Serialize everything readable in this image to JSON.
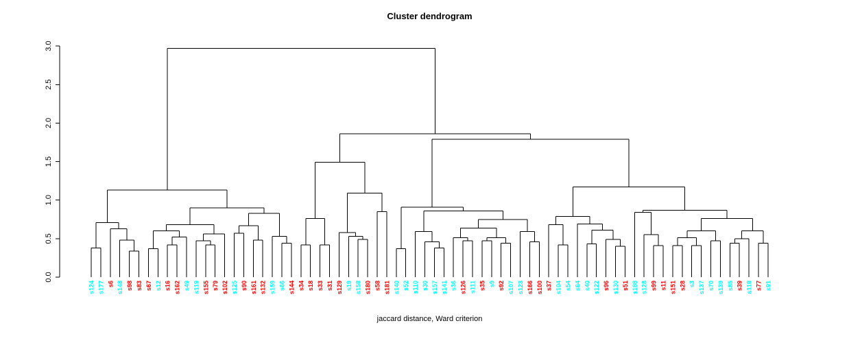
{
  "header": {
    "title": "Cluster dendrogram"
  },
  "footer": {
    "xlabel": "jaccard distance, Ward criterion"
  },
  "chart_data": {
    "type": "dendrogram",
    "title": "Cluster dendrogram",
    "xlabel": "jaccard distance, Ward criterion",
    "ylabel": "",
    "ylim": [
      0,
      3
    ],
    "yticks": [
      "0.0",
      "0.5",
      "1.0",
      "1.5",
      "2.0",
      "2.5",
      "3.0"
    ],
    "grid": false,
    "colors": {
      "red": "#ff0000",
      "cyan": "#00ffff",
      "line": "#000000"
    },
    "leaves": [
      {
        "label": "s124",
        "color": "cyan"
      },
      {
        "label": "s177",
        "color": "cyan"
      },
      {
        "label": "s6",
        "color": "red"
      },
      {
        "label": "s148",
        "color": "cyan"
      },
      {
        "label": "s98",
        "color": "red"
      },
      {
        "label": "s83",
        "color": "red"
      },
      {
        "label": "s67",
        "color": "red"
      },
      {
        "label": "s12",
        "color": "cyan"
      },
      {
        "label": "s16",
        "color": "red"
      },
      {
        "label": "s162",
        "color": "red"
      },
      {
        "label": "s49",
        "color": "cyan"
      },
      {
        "label": "s119",
        "color": "cyan"
      },
      {
        "label": "s155",
        "color": "red"
      },
      {
        "label": "s79",
        "color": "red"
      },
      {
        "label": "s102",
        "color": "red"
      },
      {
        "label": "s125",
        "color": "cyan"
      },
      {
        "label": "s90",
        "color": "red"
      },
      {
        "label": "s161",
        "color": "red"
      },
      {
        "label": "s132",
        "color": "red"
      },
      {
        "label": "s159",
        "color": "cyan"
      },
      {
        "label": "s66",
        "color": "cyan"
      },
      {
        "label": "s144",
        "color": "red"
      },
      {
        "label": "s34",
        "color": "red"
      },
      {
        "label": "s18",
        "color": "red"
      },
      {
        "label": "s33",
        "color": "red"
      },
      {
        "label": "s31",
        "color": "red"
      },
      {
        "label": "s129",
        "color": "red"
      },
      {
        "label": "s19",
        "color": "cyan"
      },
      {
        "label": "s158",
        "color": "cyan"
      },
      {
        "label": "s180",
        "color": "red"
      },
      {
        "label": "s58",
        "color": "red"
      },
      {
        "label": "s181",
        "color": "red"
      },
      {
        "label": "s140",
        "color": "cyan"
      },
      {
        "label": "s52",
        "color": "cyan"
      },
      {
        "label": "s110",
        "color": "cyan"
      },
      {
        "label": "s30",
        "color": "cyan"
      },
      {
        "label": "s157",
        "color": "cyan"
      },
      {
        "label": "s141",
        "color": "cyan"
      },
      {
        "label": "s36",
        "color": "cyan"
      },
      {
        "label": "s126",
        "color": "red"
      },
      {
        "label": "s111",
        "color": "cyan"
      },
      {
        "label": "s35",
        "color": "red"
      },
      {
        "label": "s9",
        "color": "cyan"
      },
      {
        "label": "s92",
        "color": "red"
      },
      {
        "label": "s107",
        "color": "cyan"
      },
      {
        "label": "s123",
        "color": "cyan"
      },
      {
        "label": "s166",
        "color": "red"
      },
      {
        "label": "s100",
        "color": "red"
      },
      {
        "label": "s37",
        "color": "red"
      },
      {
        "label": "s104",
        "color": "cyan"
      },
      {
        "label": "s54",
        "color": "cyan"
      },
      {
        "label": "s64",
        "color": "cyan"
      },
      {
        "label": "s40",
        "color": "cyan"
      },
      {
        "label": "s122",
        "color": "cyan"
      },
      {
        "label": "s96",
        "color": "red"
      },
      {
        "label": "s130",
        "color": "cyan"
      },
      {
        "label": "s51",
        "color": "red"
      },
      {
        "label": "s188",
        "color": "cyan"
      },
      {
        "label": "s128",
        "color": "cyan"
      },
      {
        "label": "s99",
        "color": "red"
      },
      {
        "label": "s11",
        "color": "red"
      },
      {
        "label": "s151",
        "color": "red"
      },
      {
        "label": "s28",
        "color": "red"
      },
      {
        "label": "s3",
        "color": "cyan"
      },
      {
        "label": "s137",
        "color": "cyan"
      },
      {
        "label": "s70",
        "color": "cyan"
      },
      {
        "label": "s139",
        "color": "cyan"
      },
      {
        "label": "s85",
        "color": "cyan"
      },
      {
        "label": "s39",
        "color": "red"
      },
      {
        "label": "s118",
        "color": "cyan"
      },
      {
        "label": "s77",
        "color": "red"
      },
      {
        "label": "s91",
        "color": "cyan"
      }
    ],
    "tree": {
      "h": 2.97,
      "c": [
        {
          "h": 1.13,
          "c": [
            {
              "h": 0.71,
              "c": [
                {
                  "h": 0.38,
                  "c": [
                    "s124",
                    "s177"
                  ]
                },
                {
                  "h": 0.63,
                  "c": [
                    "s6",
                    {
                      "h": 0.48,
                      "c": [
                        "s148",
                        {
                          "h": 0.34,
                          "c": [
                            "s98",
                            "s83"
                          ]
                        }
                      ]
                    }
                  ]
                }
              ]
            },
            {
              "h": 0.9,
              "c": [
                {
                  "h": 0.68,
                  "c": [
                    {
                      "h": 0.6,
                      "c": [
                        {
                          "h": 0.37,
                          "c": [
                            "s67",
                            "s12"
                          ]
                        },
                        {
                          "h": 0.52,
                          "c": [
                            {
                              "h": 0.42,
                              "c": [
                                "s16",
                                "s162"
                              ]
                            },
                            "s49"
                          ]
                        }
                      ]
                    },
                    {
                      "h": 0.56,
                      "c": [
                        {
                          "h": 0.47,
                          "c": [
                            "s119",
                            {
                              "h": 0.42,
                              "c": [
                                "s155",
                                "s79"
                              ]
                            }
                          ]
                        },
                        "s102"
                      ]
                    }
                  ]
                },
                {
                  "h": 0.83,
                  "c": [
                    {
                      "h": 0.67,
                      "c": [
                        {
                          "h": 0.57,
                          "c": [
                            "s125",
                            "s90"
                          ]
                        },
                        {
                          "h": 0.48,
                          "c": [
                            "s161",
                            "s132"
                          ]
                        }
                      ]
                    },
                    {
                      "h": 0.53,
                      "c": [
                        "s159",
                        {
                          "h": 0.44,
                          "c": [
                            "s66",
                            "s144"
                          ]
                        }
                      ]
                    }
                  ]
                }
              ]
            }
          ]
        },
        {
          "h": 1.86,
          "c": [
            {
              "h": 1.49,
              "c": [
                {
                  "h": 0.76,
                  "c": [
                    {
                      "h": 0.42,
                      "c": [
                        "s34",
                        "s18"
                      ]
                    },
                    {
                      "h": 0.42,
                      "c": [
                        "s33",
                        "s31"
                      ]
                    }
                  ]
                },
                {
                  "h": 1.09,
                  "c": [
                    {
                      "h": 0.58,
                      "c": [
                        "s129",
                        {
                          "h": 0.53,
                          "c": [
                            "s19",
                            {
                              "h": 0.49,
                              "c": [
                                "s158",
                                "s180"
                              ]
                            }
                          ]
                        }
                      ]
                    },
                    {
                      "h": 0.85,
                      "c": [
                        "s58",
                        "s181"
                      ]
                    }
                  ]
                }
              ]
            },
            {
              "h": 1.79,
              "c": [
                {
                  "h": 0.91,
                  "c": [
                    {
                      "h": 0.37,
                      "c": [
                        "s140",
                        "s52"
                      ]
                    },
                    {
                      "h": 0.86,
                      "c": [
                        {
                          "h": 0.59,
                          "c": [
                            "s110",
                            {
                              "h": 0.46,
                              "c": [
                                "s30",
                                {
                                  "h": 0.38,
                                  "c": [
                                    "s157",
                                    "s141"
                                  ]
                                }
                              ]
                            }
                          ]
                        },
                        {
                          "h": 0.75,
                          "c": [
                            {
                              "h": 0.635,
                              "c": [
                                {
                                  "h": 0.51,
                                  "c": [
                                    "s36",
                                    {
                                      "h": 0.47,
                                      "c": [
                                        "s126",
                                        "s111"
                                      ]
                                    }
                                  ]
                                },
                                {
                                  "h": 0.51,
                                  "c": [
                                    {
                                      "h": 0.47,
                                      "c": [
                                        "s35",
                                        "s9"
                                      ]
                                    },
                                    {
                                      "h": 0.44,
                                      "c": [
                                        "s92",
                                        "s107"
                                      ]
                                    }
                                  ]
                                }
                              ]
                            },
                            {
                              "h": 0.59,
                              "c": [
                                "s123",
                                {
                                  "h": 0.46,
                                  "c": [
                                    "s166",
                                    "s100"
                                  ]
                                }
                              ]
                            }
                          ]
                        }
                      ]
                    }
                  ]
                },
                {
                  "h": 1.17,
                  "c": [
                    {
                      "h": 0.79,
                      "c": [
                        {
                          "h": 0.68,
                          "c": [
                            "s37",
                            {
                              "h": 0.42,
                              "c": [
                                "s104",
                                "s54"
                              ]
                            }
                          ]
                        },
                        {
                          "h": 0.69,
                          "c": [
                            "s64",
                            {
                              "h": 0.61,
                              "c": [
                                {
                                  "h": 0.43,
                                  "c": [
                                    "s40",
                                    "s122"
                                  ]
                                },
                                {
                                  "h": 0.49,
                                  "c": [
                                    "s96",
                                    {
                                      "h": 0.4,
                                      "c": [
                                        "s130",
                                        "s51"
                                      ]
                                    }
                                  ]
                                }
                              ]
                            }
                          ]
                        }
                      ]
                    },
                    {
                      "h": 0.87,
                      "c": [
                        {
                          "h": 0.84,
                          "c": [
                            "s188",
                            {
                              "h": 0.55,
                              "c": [
                                "s128",
                                {
                                  "h": 0.41,
                                  "c": [
                                    "s99",
                                    "s11"
                                  ]
                                }
                              ]
                            }
                          ]
                        },
                        {
                          "h": 0.76,
                          "c": [
                            {
                              "h": 0.6,
                              "c": [
                                {
                                  "h": 0.51,
                                  "c": [
                                    {
                                      "h": 0.41,
                                      "c": [
                                        "s151",
                                        "s28"
                                      ]
                                    },
                                    {
                                      "h": 0.41,
                                      "c": [
                                        "s3",
                                        "s137"
                                      ]
                                    }
                                  ]
                                },
                                {
                                  "h": 0.47,
                                  "c": [
                                    "s70",
                                    "s139"
                                  ]
                                }
                              ]
                            },
                            {
                              "h": 0.6,
                              "c": [
                                {
                                  "h": 0.5,
                                  "c": [
                                    {
                                      "h": 0.44,
                                      "c": [
                                        "s85",
                                        "s39"
                                      ]
                                    },
                                    "s118"
                                  ]
                                },
                                {
                                  "h": 0.44,
                                  "c": [
                                    "s77",
                                    "s91"
                                  ]
                                }
                              ]
                            }
                          ]
                        }
                      ]
                    }
                  ]
                }
              ]
            }
          ]
        }
      ]
    }
  }
}
